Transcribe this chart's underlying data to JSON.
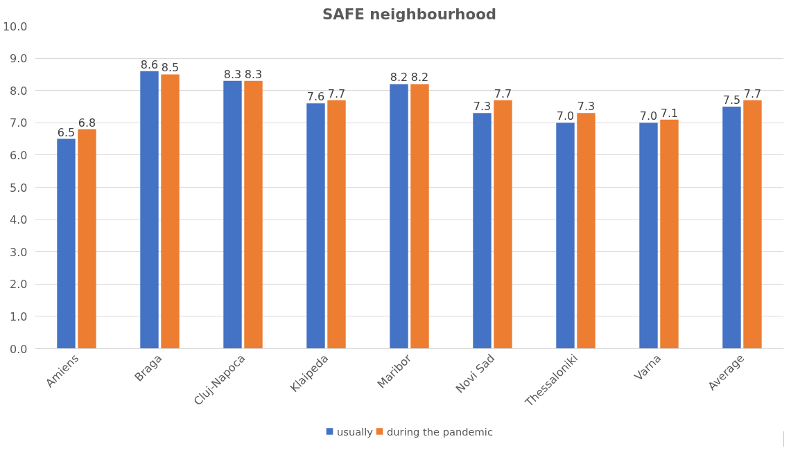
{
  "chart_data": {
    "type": "bar",
    "title": "SAFE neighbourhood",
    "categories": [
      "Amiens",
      "Braga",
      "Cluj-Napoca",
      "Klaipeda",
      "Maribor",
      "Novi Sad",
      "Thessaloniki",
      "Varna",
      "Average"
    ],
    "series": [
      {
        "name": "usually",
        "color": "#4472c4",
        "values": [
          6.5,
          8.6,
          8.3,
          7.6,
          8.2,
          7.3,
          7.0,
          7.0,
          7.5
        ],
        "value_labels": [
          "6.5",
          "8.6",
          "8.3",
          "7.6",
          "8.2",
          "7.3",
          "7.0",
          "7.0",
          "7.5"
        ]
      },
      {
        "name": "during the pandemic",
        "color": "#ed7d31",
        "values": [
          6.8,
          8.5,
          8.3,
          7.7,
          8.2,
          7.7,
          7.3,
          7.1,
          7.7
        ],
        "value_labels": [
          "6.8",
          "8.5",
          "8.3",
          "7.7",
          "8.2",
          "7.7",
          "7.3",
          "7.1",
          "7.7"
        ]
      }
    ],
    "ylim": [
      0,
      10
    ],
    "yticks": [
      {
        "value": 0,
        "label": "0.0"
      },
      {
        "value": 1,
        "label": "1.0"
      },
      {
        "value": 2,
        "label": "2.0"
      },
      {
        "value": 3,
        "label": "3.0"
      },
      {
        "value": 4,
        "label": "4.0"
      },
      {
        "value": 5,
        "label": "5.0"
      },
      {
        "value": 6,
        "label": "6.0"
      },
      {
        "value": 7,
        "label": "7.0"
      },
      {
        "value": 8,
        "label": "8.0"
      },
      {
        "value": 9,
        "label": "9.0"
      },
      {
        "value": 10,
        "label": "10.0"
      }
    ],
    "grid": "y",
    "legend": "bottom"
  }
}
